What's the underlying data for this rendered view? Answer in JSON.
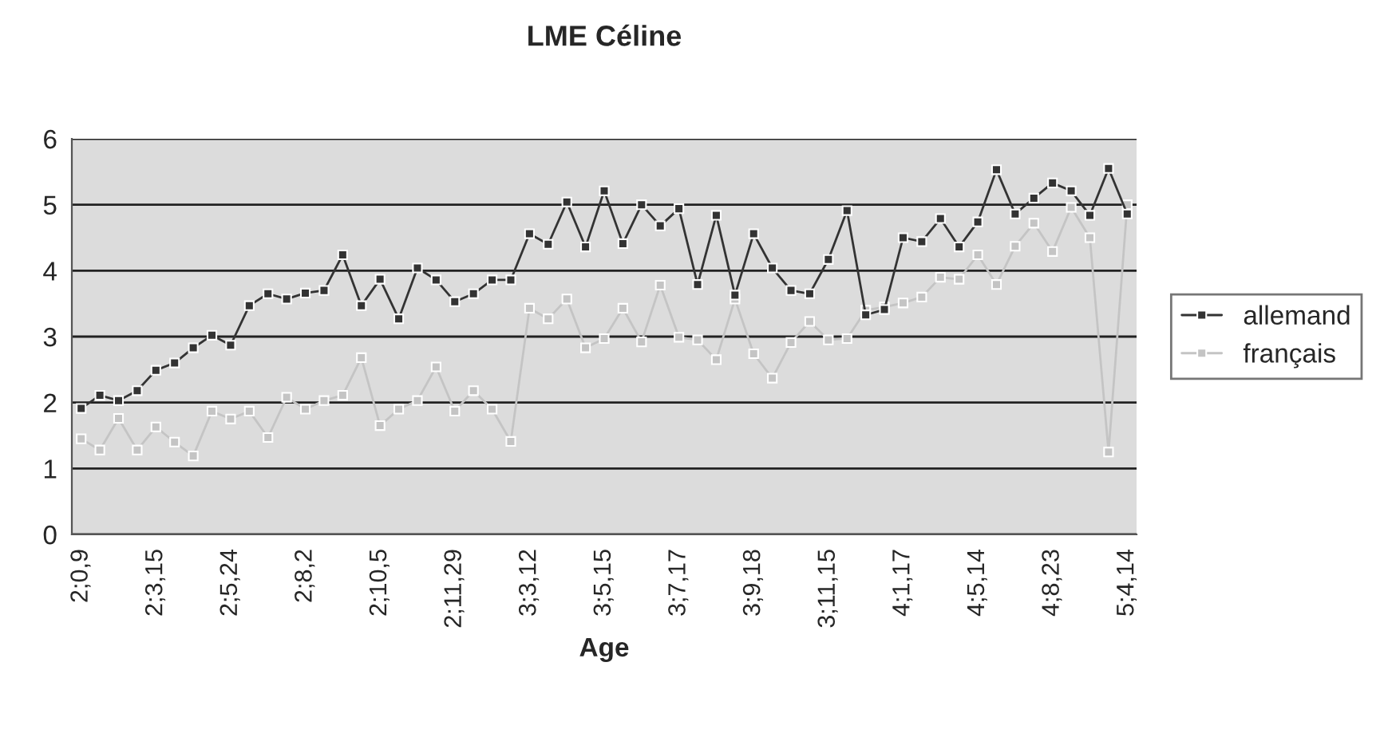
{
  "chart_data": {
    "type": "line",
    "title": "LME Céline",
    "xlabel": "Age",
    "categories": [
      "2;0,9",
      null,
      null,
      null,
      "2;3,15",
      null,
      null,
      null,
      "2;5,24",
      null,
      null,
      null,
      "2;8,2",
      null,
      null,
      null,
      "2;10,5",
      null,
      null,
      null,
      "2;11,29",
      null,
      null,
      null,
      "3;3,12",
      null,
      null,
      null,
      "3;5,15",
      null,
      null,
      null,
      "3;7,17",
      null,
      null,
      null,
      "3;9,18",
      null,
      null,
      null,
      "3;11,15",
      null,
      null,
      null,
      "4;1,17",
      null,
      null,
      null,
      "4;5,14",
      null,
      null,
      null,
      "4;8,23",
      null,
      null,
      null,
      "5;4,14"
    ],
    "series": [
      {
        "name": "allemand",
        "color": "#333333",
        "values": [
          1.91,
          2.11,
          2.03,
          2.18,
          2.49,
          2.6,
          2.83,
          3.02,
          2.87,
          3.47,
          3.65,
          3.57,
          3.66,
          3.7,
          4.24,
          3.47,
          3.87,
          3.27,
          4.04,
          3.86,
          3.53,
          3.65,
          3.86,
          3.86,
          4.56,
          4.4,
          5.04,
          4.36,
          5.21,
          4.41,
          5.0,
          4.68,
          4.94,
          3.79,
          4.84,
          3.63,
          4.56,
          4.04,
          3.7,
          3.65,
          4.17,
          4.91,
          3.33,
          3.41,
          4.5,
          4.44,
          4.79,
          4.36,
          4.74,
          5.53,
          4.86,
          5.1,
          5.33,
          5.21,
          4.84,
          5.55,
          4.86
        ]
      },
      {
        "name": "français",
        "color": "#c4c4c4",
        "values": [
          1.45,
          1.28,
          1.76,
          1.28,
          1.63,
          1.4,
          1.19,
          1.87,
          1.75,
          1.87,
          1.47,
          2.08,
          1.9,
          2.03,
          2.11,
          2.68,
          1.65,
          1.9,
          2.03,
          2.54,
          1.87,
          2.18,
          1.9,
          1.41,
          3.43,
          3.27,
          3.57,
          2.83,
          2.97,
          3.43,
          2.92,
          3.78,
          2.99,
          2.95,
          2.65,
          3.57,
          2.74,
          2.37,
          2.91,
          3.23,
          2.95,
          2.97,
          3.4,
          3.45,
          3.51,
          3.6,
          3.9,
          3.87,
          4.24,
          3.79,
          4.37,
          4.72,
          4.29,
          4.96,
          4.5,
          1.25,
          5.0
        ]
      }
    ],
    "ylim": [
      0,
      6
    ],
    "yticks": [
      0,
      1,
      2,
      3,
      4,
      5,
      6
    ],
    "grid": "y",
    "legend": "right",
    "marker": "square",
    "line_style": "solid"
  }
}
